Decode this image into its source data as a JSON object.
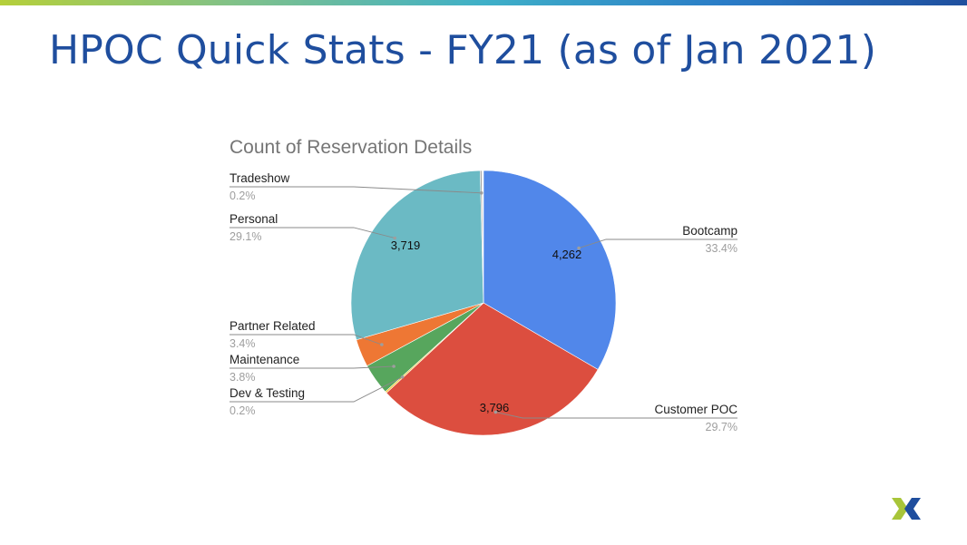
{
  "slide": {
    "title": "HPOC Quick Stats - FY21 (as of Jan 2021)"
  },
  "colors": {
    "title": "#1f4e9e",
    "logo_green": "#a8c539",
    "logo_blue": "#1f4e9e"
  },
  "logo": {
    "icon": "nutanix-x-logo-icon"
  },
  "chart_data": {
    "type": "pie",
    "title": "Count of Reservation Details",
    "legend": "labels-with-leader-lines",
    "start_angle_deg": 0,
    "direction": "clockwise",
    "slices": [
      {
        "label": "Bootcamp",
        "percent": "33.4%",
        "share": 0.334,
        "data_label": "4,262",
        "color": "#5187ea",
        "side": "right"
      },
      {
        "label": "Customer POC",
        "percent": "29.7%",
        "share": 0.297,
        "data_label": "3,796",
        "color": "#dc4e3f",
        "side": "right"
      },
      {
        "label": "Dev & Testing",
        "percent": "0.2%",
        "share": 0.002,
        "data_label": "",
        "color": "#f2c01c",
        "side": "left"
      },
      {
        "label": "Maintenance",
        "percent": "3.8%",
        "share": 0.038,
        "data_label": "",
        "color": "#57a65d",
        "side": "left"
      },
      {
        "label": "Partner Related",
        "percent": "3.4%",
        "share": 0.034,
        "data_label": "",
        "color": "#ee7734",
        "side": "left"
      },
      {
        "label": "Personal",
        "percent": "29.1%",
        "share": 0.291,
        "data_label": "3,719",
        "color": "#6bbac4",
        "side": "left"
      },
      {
        "label": "Tradeshow",
        "percent": "0.2%",
        "share": 0.002,
        "data_label": "",
        "color": "#a3a3a3",
        "side": "left"
      }
    ]
  }
}
